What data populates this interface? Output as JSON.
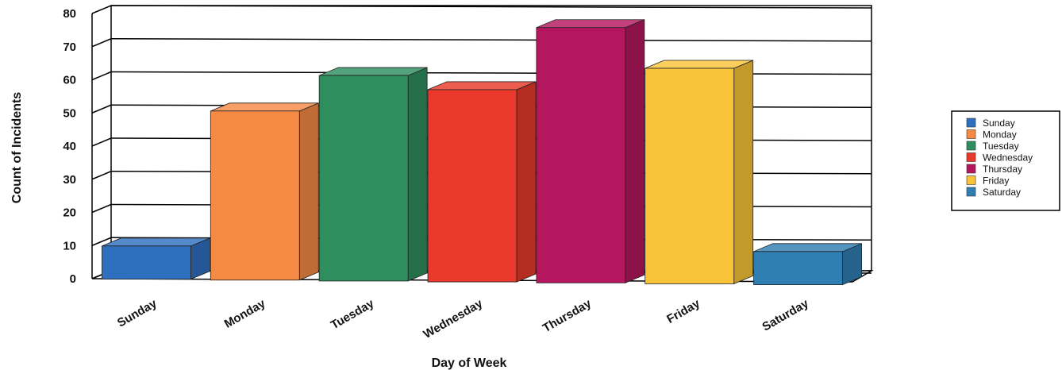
{
  "chart_data": {
    "type": "bar",
    "title": "",
    "xlabel": "Day of Week",
    "ylabel": "Count of Incidents",
    "categories": [
      "Sunday",
      "Monday",
      "Tuesday",
      "Wednesday",
      "Thursday",
      "Friday",
      "Saturday"
    ],
    "values": [
      10,
      51,
      62,
      58,
      77,
      65,
      10
    ],
    "ylim": [
      0,
      80
    ],
    "yticks": [
      0,
      10,
      20,
      30,
      40,
      50,
      60,
      70,
      80
    ],
    "grid": true,
    "legend_position": "right",
    "legend": [
      "Sunday",
      "Monday",
      "Tuesday",
      "Wednesday",
      "Thursday",
      "Friday",
      "Saturday"
    ],
    "colors": [
      "#2f6fc0",
      "#f58a45",
      "#2e8e5e",
      "#e8392a",
      "#b5175e",
      "#f9c43a",
      "#2f7fb3"
    ]
  }
}
